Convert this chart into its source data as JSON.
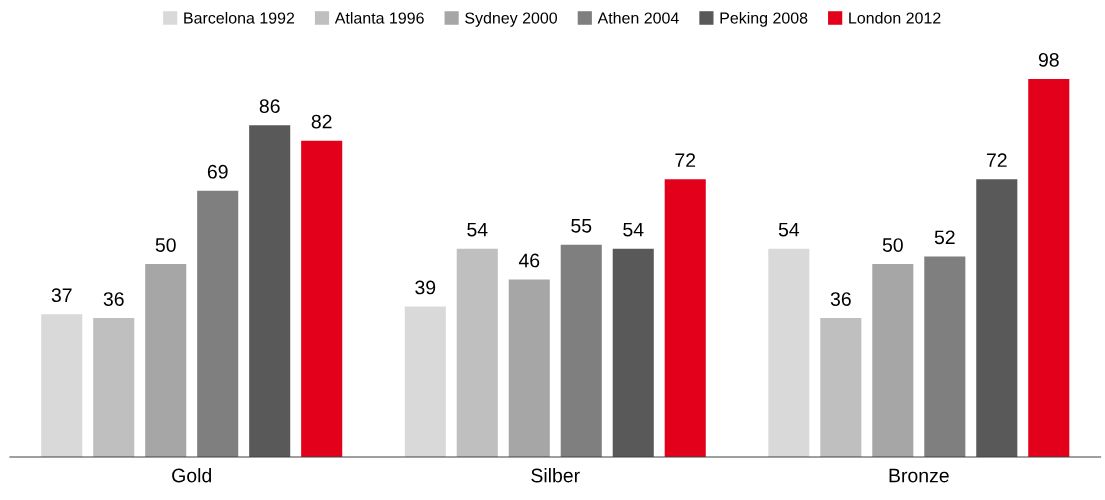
{
  "chart_data": {
    "type": "bar",
    "categories": [
      "Gold",
      "Silber",
      "Bronze"
    ],
    "series": [
      {
        "name": "Barcelona 1992",
        "color": "#d9d9d9",
        "values": [
          37,
          39,
          54
        ]
      },
      {
        "name": "Atlanta 1996",
        "color": "#bfbfbf",
        "values": [
          36,
          54,
          36
        ]
      },
      {
        "name": "Sydney 2000",
        "color": "#a6a6a6",
        "values": [
          50,
          46,
          50
        ]
      },
      {
        "name": "Athen 2004",
        "color": "#7f7f7f",
        "values": [
          69,
          55,
          52
        ]
      },
      {
        "name": "Peking 2008",
        "color": "#595959",
        "values": [
          86,
          54,
          72
        ]
      },
      {
        "name": "London 2012",
        "color": "#e2001a",
        "values": [
          82,
          72,
          98
        ]
      }
    ],
    "data_labels": true,
    "legend": "top",
    "grid": false,
    "tick_labels": "x"
  }
}
